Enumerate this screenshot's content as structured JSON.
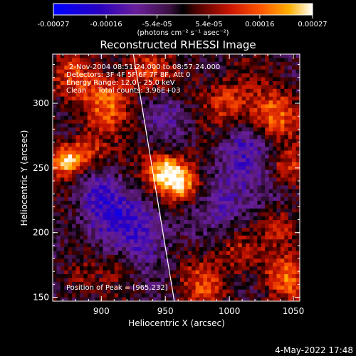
{
  "chart_data": {
    "type": "heatmap",
    "title": "Reconstructed RHESSI Image",
    "xlabel": "Heliocentric X (arcsec)",
    "ylabel": "Heliocentric Y (arcsec)",
    "xlim": [
      862,
      1055
    ],
    "ylim": [
      147,
      338
    ],
    "x_ticks": [
      900,
      950,
      1000,
      1050
    ],
    "y_ticks": [
      150,
      200,
      250,
      300
    ],
    "x_tick_labels": [
      "900",
      "950",
      "1000",
      "1050"
    ],
    "y_tick_labels": [
      "150",
      "200",
      "250",
      "300"
    ],
    "colorbar": {
      "range": [
        -0.00027,
        0.00027
      ],
      "tick_values": [
        -0.00027,
        -0.00016,
        -5.4e-05,
        5.4e-05,
        0.00016,
        0.00027
      ],
      "tick_labels": [
        "-0.00027",
        "-0.00016",
        "-5.4e-05",
        "5.4e-05",
        "0.00016",
        "0.00027"
      ],
      "unit_label": "(photons cm⁻² s⁻¹ asec⁻²)"
    },
    "info_lines": [
      "2-Nov-2004 08:51:24.000 to 08:57:24.000",
      "Detectors: 3F 4F 5F 6F 7F 8F, Att 0",
      "Energy Range: 12.0 - 25.0 keV",
      "Clean     Total counts: 3.96E+03"
    ],
    "peak_label": "Position of Peak = [965,232]",
    "peak": [
      965,
      232
    ],
    "limb_line": [
      [
        925,
        338
      ],
      [
        957,
        147
      ]
    ],
    "hotspots": [
      {
        "x": 962,
        "y": 238,
        "amp": 0.00027,
        "r": 12
      },
      {
        "x": 948,
        "y": 248,
        "amp": 0.0002,
        "r": 10
      },
      {
        "x": 873,
        "y": 255,
        "amp": 0.00022,
        "r": 8
      },
      {
        "x": 888,
        "y": 262,
        "amp": 0.00015,
        "r": 10
      },
      {
        "x": 905,
        "y": 300,
        "amp": 0.00015,
        "r": 14
      },
      {
        "x": 935,
        "y": 325,
        "amp": 0.00012,
        "r": 12
      },
      {
        "x": 875,
        "y": 320,
        "amp": 0.00012,
        "r": 12
      },
      {
        "x": 1000,
        "y": 300,
        "amp": 0.00014,
        "r": 14
      },
      {
        "x": 1035,
        "y": 290,
        "amp": 0.00015,
        "r": 12
      },
      {
        "x": 1045,
        "y": 250,
        "amp": 0.00012,
        "r": 10
      },
      {
        "x": 1040,
        "y": 205,
        "amp": 0.0001,
        "r": 10
      },
      {
        "x": 1005,
        "y": 185,
        "amp": 0.00011,
        "r": 12
      },
      {
        "x": 1045,
        "y": 165,
        "amp": 0.00014,
        "r": 12
      },
      {
        "x": 980,
        "y": 160,
        "amp": 0.00012,
        "r": 12
      },
      {
        "x": 915,
        "y": 175,
        "amp": 6e-05,
        "r": 10
      },
      {
        "x": 880,
        "y": 165,
        "amp": 6e-05,
        "r": 10
      }
    ],
    "coldspots": [
      {
        "x": 930,
        "y": 205,
        "amp": -0.00013,
        "r": 22
      },
      {
        "x": 900,
        "y": 215,
        "amp": -9e-05,
        "r": 16
      },
      {
        "x": 1000,
        "y": 230,
        "amp": -0.00012,
        "r": 20
      },
      {
        "x": 1010,
        "y": 265,
        "amp": -0.0001,
        "r": 14
      },
      {
        "x": 955,
        "y": 290,
        "amp": -9e-05,
        "r": 14
      },
      {
        "x": 895,
        "y": 235,
        "amp": -6e-05,
        "r": 12
      }
    ]
  },
  "footer": {
    "timestamp": "4-May-2022 17:48"
  }
}
